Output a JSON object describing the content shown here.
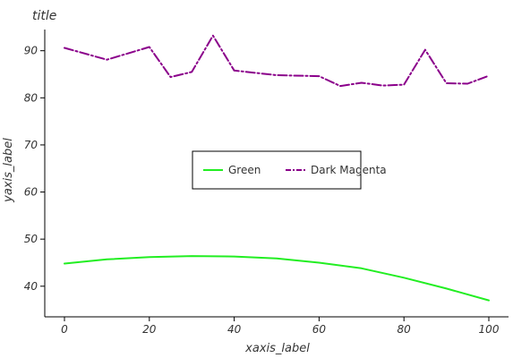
{
  "chart_data": {
    "type": "line",
    "title": "title",
    "xlabel": "xaxis_label",
    "ylabel": "yaxis_label",
    "xlim": [
      0,
      100
    ],
    "ylim": [
      33.5,
      94.5
    ],
    "x_ticks": [
      0,
      20,
      40,
      60,
      80,
      100
    ],
    "x_tick_labels": [
      "0",
      "20",
      "40",
      "60",
      "80",
      "100"
    ],
    "y_ticks": [
      40,
      50,
      60,
      70,
      80,
      90
    ],
    "y_tick_labels": [
      "40",
      "50",
      "60",
      "70",
      "80",
      "90"
    ],
    "grid": false,
    "legend_position": "center",
    "series": [
      {
        "name": "Green",
        "color": "#22ee22",
        "style": "solid",
        "x": [
          0,
          10,
          20,
          30,
          40,
          50,
          60,
          70,
          80,
          90,
          100
        ],
        "y": [
          44.8,
          45.7,
          46.2,
          46.4,
          46.3,
          45.9,
          45.0,
          43.8,
          41.8,
          39.5,
          37.0
        ]
      },
      {
        "name": "Dark Magenta",
        "color": "#8b008b",
        "style": "dashdot",
        "x": [
          0,
          10,
          20,
          25,
          30,
          35,
          40,
          50,
          60,
          65,
          70,
          75,
          80,
          85,
          90,
          95,
          100
        ],
        "y": [
          90.6,
          88.1,
          90.8,
          84.4,
          85.5,
          93.2,
          85.8,
          84.8,
          84.6,
          82.5,
          83.2,
          82.6,
          82.8,
          90.2,
          83.1,
          83.0,
          84.7
        ]
      }
    ]
  }
}
